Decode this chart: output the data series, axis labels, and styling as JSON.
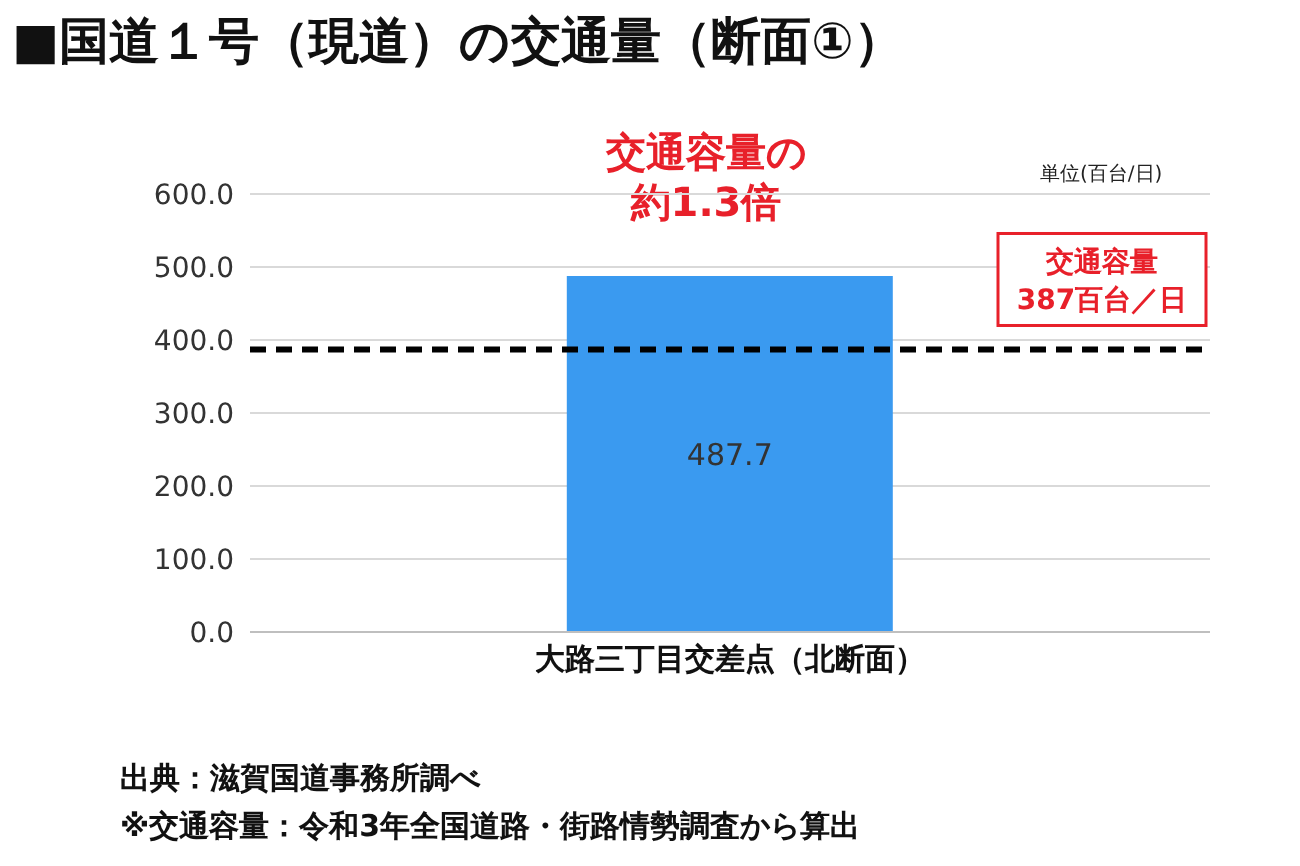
{
  "chart_data": {
    "type": "bar",
    "title": "■国道１号（現道）の交通量（断面①）",
    "ylabel": "単位(百台/日)",
    "categories": [
      "大路三丁目交差点（北断面）"
    ],
    "values": [
      487.7
    ],
    "color": "#3a9af0",
    "data_labels": true,
    "ylim": [
      0,
      600
    ],
    "yticks": [
      {
        "value": 0,
        "label": "0.0"
      },
      {
        "value": 100,
        "label": "100.0"
      },
      {
        "value": 200,
        "label": "200.0"
      },
      {
        "value": 300,
        "label": "300.0"
      },
      {
        "value": 400,
        "label": "400.0"
      },
      {
        "value": 500,
        "label": "500.0"
      },
      {
        "value": 600,
        "label": "600.0"
      }
    ],
    "grid": "y",
    "ref_lines": [
      {
        "axis": "y",
        "value": 387,
        "label": "交通容量\n387百台／日",
        "color": "#000000",
        "line_style": "dashed"
      }
    ],
    "annotations": [
      "交通容量の",
      "約1.3倍",
      "出典：滋賀国道事務所調べ",
      "※交通容量：令和3年全国道路・街路情勢調査から算出"
    ]
  }
}
